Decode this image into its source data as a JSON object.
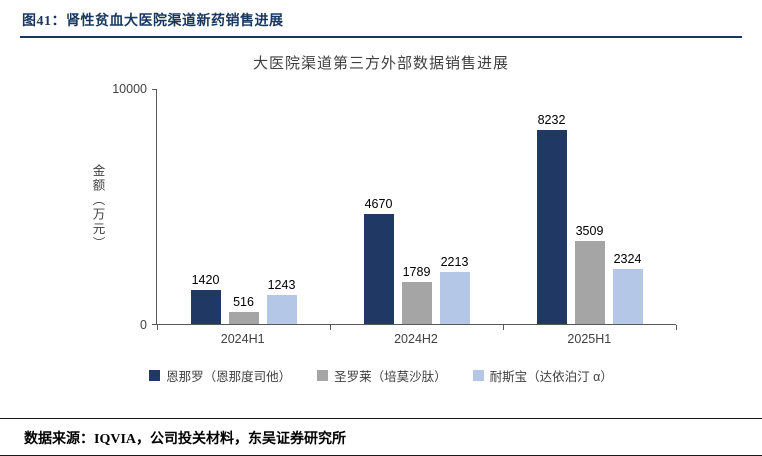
{
  "header": {
    "figure_label": "图41：肾性贫血大医院渠道新药销售进展"
  },
  "chart_data": {
    "type": "bar",
    "title": "大医院渠道第三方外部数据销售进展",
    "xlabel": "",
    "ylabel": "金额（万元）",
    "ylim": [
      0,
      10000
    ],
    "y_tick_labels": [
      "0",
      "10000"
    ],
    "grid": false,
    "legend_position": "bottom",
    "categories": [
      "2024H1",
      "2024H2",
      "2025H1"
    ],
    "series": [
      {
        "name": "恩那罗（恩那度司他）",
        "color": "#1F3864",
        "values": [
          1420,
          4670,
          8232
        ]
      },
      {
        "name": "圣罗莱（培莫沙肽）",
        "color": "#A5A5A5",
        "values": [
          516,
          1789,
          3509
        ]
      },
      {
        "name": "耐斯宝（达依泊汀 α）",
        "color": "#B4C7E7",
        "values": [
          1243,
          2213,
          2324
        ]
      }
    ]
  },
  "footer": {
    "source": "数据来源：IQVIA，公司投关材料，东吴证券研究所"
  },
  "colors": {
    "accent_navy": "#17375E",
    "axis": "#595959"
  }
}
